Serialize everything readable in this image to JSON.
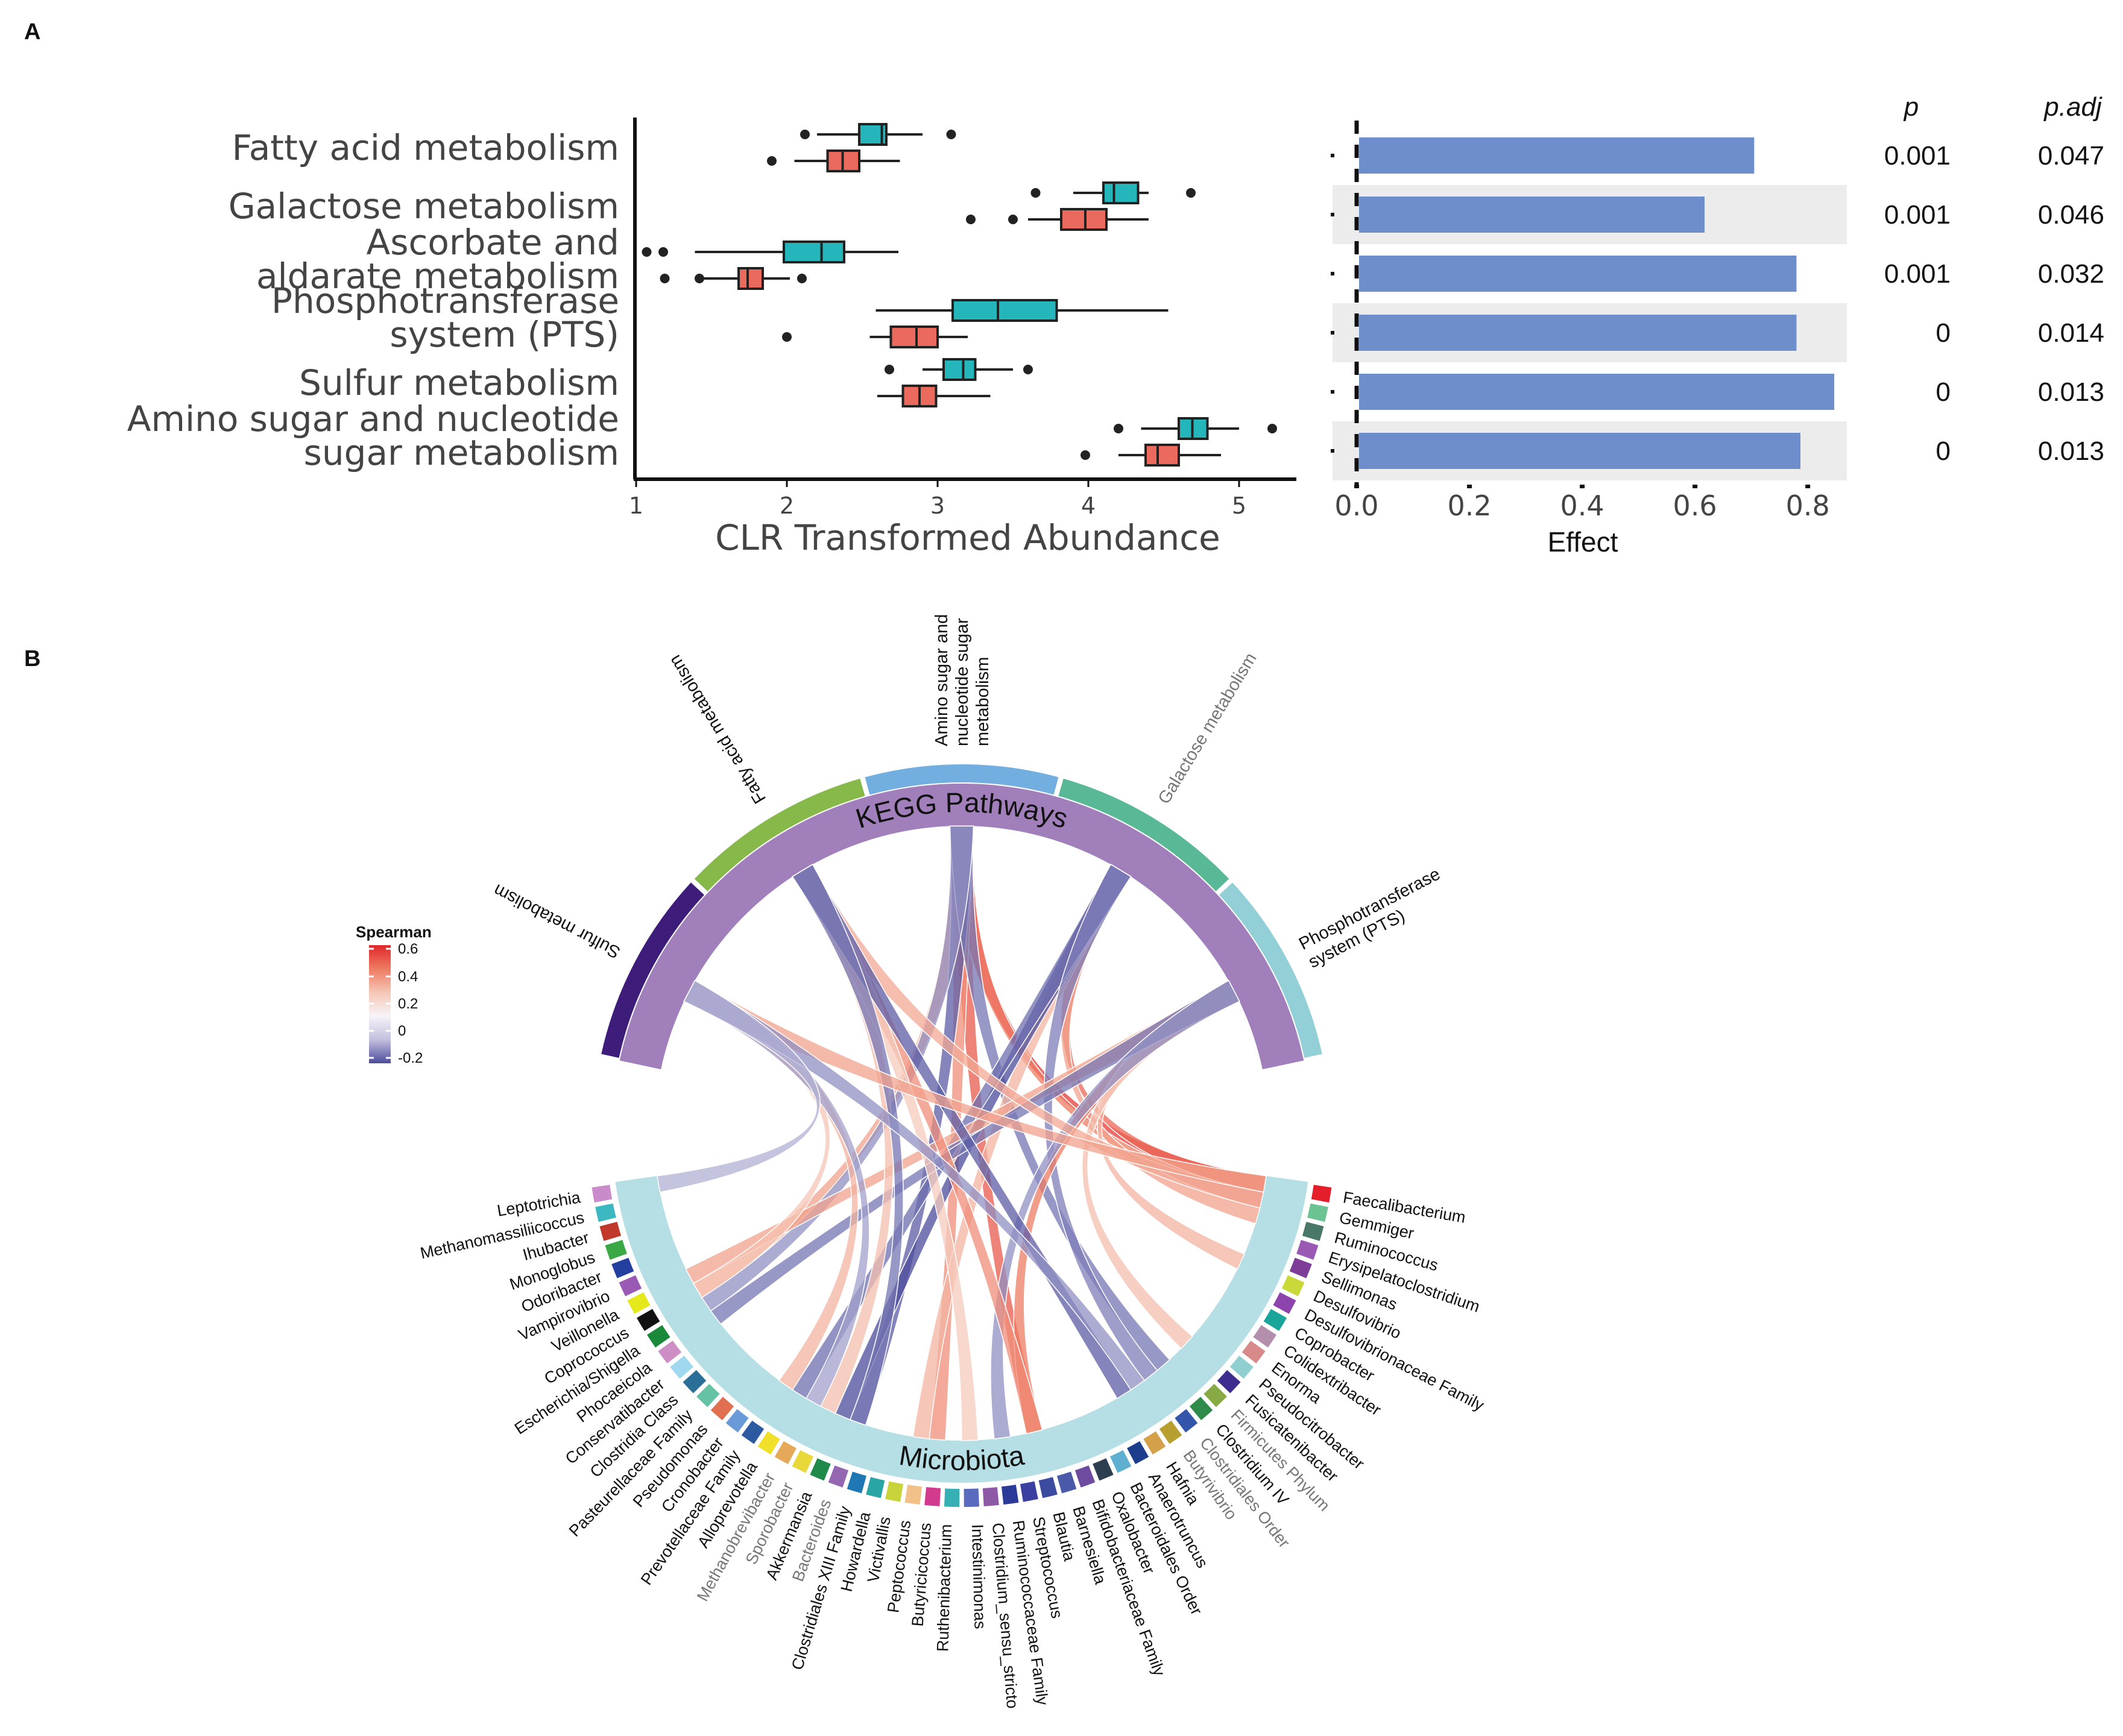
{
  "panel_a_letter": "A",
  "panel_b_letter": "B",
  "chart_data": [
    {
      "type": "boxplot",
      "panel": "A",
      "xlabel": "CLR Transformed Abundance",
      "xlim": [
        1,
        5.4
      ],
      "xticks": [
        1,
        2,
        3,
        4,
        5
      ],
      "colors": {
        "group1": "#25b6bc",
        "group2": "#ea6b5d"
      },
      "categories": [
        {
          "label_lines": [
            "Fatty acid metabolism"
          ],
          "boxes": [
            {
              "group": "group1",
              "whisker_lo": 2.2,
              "q1": 2.48,
              "median": 2.63,
              "q3": 2.66,
              "whisker_hi": 2.9,
              "outliers": [
                2.12,
                3.09
              ]
            },
            {
              "group": "group2",
              "whisker_lo": 2.05,
              "q1": 2.27,
              "median": 2.37,
              "q3": 2.48,
              "whisker_hi": 2.75,
              "outliers": [
                1.9
              ]
            }
          ]
        },
        {
          "label_lines": [
            "Galactose metabolism"
          ],
          "boxes": [
            {
              "group": "group1",
              "whisker_lo": 3.9,
              "q1": 4.1,
              "median": 4.17,
              "q3": 4.33,
              "whisker_hi": 4.4,
              "outliers": [
                3.65,
                4.68
              ]
            },
            {
              "group": "group2",
              "whisker_lo": 3.6,
              "q1": 3.82,
              "median": 3.98,
              "q3": 4.12,
              "whisker_hi": 4.4,
              "outliers": [
                3.22,
                3.5
              ]
            }
          ]
        },
        {
          "label_lines": [
            "Ascorbate and",
            "aldarate metabolism"
          ],
          "boxes": [
            {
              "group": "group1",
              "whisker_lo": 1.39,
              "q1": 1.98,
              "median": 2.23,
              "q3": 2.38,
              "whisker_hi": 2.74,
              "outliers": [
                1.07,
                1.18
              ]
            },
            {
              "group": "group2",
              "whisker_lo": 1.45,
              "q1": 1.68,
              "median": 1.74,
              "q3": 1.84,
              "whisker_hi": 2.02,
              "outliers": [
                1.19,
                1.42,
                2.1
              ]
            }
          ]
        },
        {
          "label_lines": [
            "Phosphotransferase",
            "system (PTS)"
          ],
          "boxes": [
            {
              "group": "group1",
              "whisker_lo": 2.59,
              "q1": 3.1,
              "median": 3.4,
              "q3": 3.79,
              "whisker_hi": 4.53,
              "outliers": []
            },
            {
              "group": "group2",
              "whisker_lo": 2.55,
              "q1": 2.69,
              "median": 2.86,
              "q3": 3.0,
              "whisker_hi": 3.2,
              "outliers": [
                2.0
              ]
            }
          ]
        },
        {
          "label_lines": [
            "Sulfur metabolism"
          ],
          "boxes": [
            {
              "group": "group1",
              "whisker_lo": 2.9,
              "q1": 3.04,
              "median": 3.17,
              "q3": 3.25,
              "whisker_hi": 3.5,
              "outliers": [
                2.68,
                3.6
              ]
            },
            {
              "group": "group2",
              "whisker_lo": 2.6,
              "q1": 2.77,
              "median": 2.88,
              "q3": 2.99,
              "whisker_hi": 3.35,
              "outliers": []
            }
          ]
        },
        {
          "label_lines": [
            "Amino sugar and nucleotide",
            "sugar metabolism"
          ],
          "boxes": [
            {
              "group": "group1",
              "whisker_lo": 4.35,
              "q1": 4.6,
              "median": 4.69,
              "q3": 4.79,
              "whisker_hi": 5.0,
              "outliers": [
                4.2,
                5.22
              ]
            },
            {
              "group": "group2",
              "whisker_lo": 4.2,
              "q1": 4.38,
              "median": 4.46,
              "q3": 4.6,
              "whisker_hi": 4.88,
              "outliers": [
                3.98
              ]
            }
          ]
        }
      ]
    },
    {
      "type": "bar",
      "orientation": "horizontal",
      "panel": "A",
      "xlabel": "Effect",
      "xlim": [
        0,
        0.88
      ],
      "xticks": [
        0.0,
        0.2,
        0.4,
        0.6,
        0.8
      ],
      "xtick_labels": [
        "0.0",
        "0.2",
        "0.4",
        "0.6",
        "0.8"
      ],
      "bar_color": "#6d8ecb",
      "stripe_color": "#ececec",
      "categories": [
        "Fatty acid metabolism",
        "Galactose metabolism",
        "Ascorbate and aldarate metabolism",
        "Phosphotransferase system (PTS)",
        "Sulfur metabolism",
        "Amino sugar and nucleotide sugar metabolism"
      ],
      "values": [
        0.705,
        0.617,
        0.78,
        0.78,
        0.847,
        0.787
      ],
      "table_headers": {
        "p": "p",
        "padj": "p.adj"
      },
      "p": [
        "0.001",
        "0.001",
        "0.001",
        "0",
        "0",
        "0"
      ],
      "padj": [
        "0.047",
        "0.046",
        "0.032",
        "0.014",
        "0.013",
        "0.013"
      ]
    },
    {
      "type": "chord",
      "panel": "B",
      "top_group_label": "KEGG Pathways",
      "bottom_group_label": "Microbiota",
      "legend": {
        "title": "Spearman",
        "labels": [
          "0.6",
          "0.4",
          "0.2",
          "0",
          "-0.2"
        ],
        "values": [
          0.6,
          0.4,
          0.2,
          0,
          -0.2
        ],
        "colors": [
          "#e0272a",
          "#ee7b63",
          "#f5c6b5",
          "#f7f4f9",
          "#c2bfdf",
          "#4b4b9c"
        ]
      },
      "pathways": [
        {
          "label_lines": [
            "Sulfur metabolism"
          ],
          "color": "#3e1c7a",
          "grey": false
        },
        {
          "label_lines": [
            "Fatty acid metabolism"
          ],
          "color": "#86b84a",
          "grey": false
        },
        {
          "label_lines": [
            "Amino sugar and",
            "nucleotide sugar",
            "metabolism"
          ],
          "color": "#73aee0",
          "grey": false
        },
        {
          "label_lines": [
            "Galactose metabolism"
          ],
          "color": "#59b996",
          "grey": true
        },
        {
          "label_lines": [
            "Phosphotransferase",
            "system (PTS)"
          ],
          "color": "#93cfd6",
          "grey": false
        }
      ],
      "taxa": [
        {
          "name": "Faecalibacterium",
          "color": "#e51f2a",
          "grey": false
        },
        {
          "name": "Gemmiger",
          "color": "#6bc393",
          "grey": false
        },
        {
          "name": "Ruminococcus",
          "color": "#4a7868",
          "grey": false
        },
        {
          "name": "Erysipelatoclostridium",
          "color": "#9b59b6",
          "grey": false
        },
        {
          "name": "Sellimonas",
          "color": "#7d3c98",
          "grey": false
        },
        {
          "name": "Desulfovibrio",
          "color": "#c9d93a",
          "grey": false
        },
        {
          "name": "Desulfovibrionaceae Family",
          "color": "#8e44ad",
          "grey": false
        },
        {
          "name": "Coprobacter",
          "color": "#1aa59a",
          "grey": false
        },
        {
          "name": "Colidextribacter",
          "color": "#b48ead",
          "grey": false
        },
        {
          "name": "Enorma",
          "color": "#d88a8a",
          "grey": false
        },
        {
          "name": "Pseudocitrobacter",
          "color": "#8fcfcf",
          "grey": false
        },
        {
          "name": "Fusicatenibacter",
          "color": "#3f2c8f",
          "grey": false
        },
        {
          "name": "Firmicutes Phylum",
          "color": "#88aa44",
          "grey": true
        },
        {
          "name": "Clostridium IV",
          "color": "#2e8b4a",
          "grey": false
        },
        {
          "name": "Clostridiales Order",
          "color": "#3355aa",
          "grey": true
        },
        {
          "name": "Butyrivibrio",
          "color": "#b8a030",
          "grey": true
        },
        {
          "name": "Hafnia",
          "color": "#d4a04a",
          "grey": false
        },
        {
          "name": "Anaerotruncus",
          "color": "#1c3d8c",
          "grey": false
        },
        {
          "name": "Bacteroidales Order",
          "color": "#5fb0d0",
          "grey": false
        },
        {
          "name": "Oxalobacter",
          "color": "#2c3e50",
          "grey": false
        },
        {
          "name": "Bifidobacteriaceae Family",
          "color": "#6e4b9e",
          "grey": false
        },
        {
          "name": "Barnesiella",
          "color": "#4a5aa8",
          "grey": false
        },
        {
          "name": "Blautia",
          "color": "#3a4ba0",
          "grey": false
        },
        {
          "name": "Streptococcus",
          "color": "#3b3fa0",
          "grey": false
        },
        {
          "name": "Ruminococcaceae Family",
          "color": "#2c3a98",
          "grey": false
        },
        {
          "name": "Clostridium_sensu_stricto",
          "color": "#8e5aa8",
          "grey": false
        },
        {
          "name": "Intestinimonas",
          "color": "#5a6abf",
          "grey": false
        },
        {
          "name": "Ruthenibacterium",
          "color": "#36b0b5",
          "grey": false
        },
        {
          "name": "Butyricicoccus",
          "color": "#d23a8e",
          "grey": false
        },
        {
          "name": "Peptococcus",
          "color": "#f2c18a",
          "grey": false
        },
        {
          "name": "Victivallis",
          "color": "#c8d43a",
          "grey": false
        },
        {
          "name": "Howardella",
          "color": "#2aa5a5",
          "grey": false
        },
        {
          "name": "Clostridiales XIII Family",
          "color": "#1f77b4",
          "grey": false
        },
        {
          "name": "Bacteroides",
          "color": "#9468b0",
          "grey": true
        },
        {
          "name": "Akkermansia",
          "color": "#1f8a4a",
          "grey": false
        },
        {
          "name": "Sporobacter",
          "color": "#e8d83a",
          "grey": true
        },
        {
          "name": "Methanobrevibacter",
          "color": "#e6a95a",
          "grey": true
        },
        {
          "name": "Alloprevotella",
          "color": "#f0e02a",
          "grey": false
        },
        {
          "name": "Prevotellaceae Family",
          "color": "#2c5aa0",
          "grey": false
        },
        {
          "name": "Cronobacter",
          "color": "#6a9bd8",
          "grey": false
        },
        {
          "name": "Pseudomonas",
          "color": "#e07050",
          "grey": false
        },
        {
          "name": "Pasteurellaceae Family",
          "color": "#66c2a5",
          "grey": false
        },
        {
          "name": "Clostridia Class",
          "color": "#2a6f97",
          "grey": false
        },
        {
          "name": "Conservatibacter",
          "color": "#a0d8ef",
          "grey": false
        },
        {
          "name": "Phocaeicola",
          "color": "#cc8ec4",
          "grey": false
        },
        {
          "name": "Escherichia/Shigella",
          "color": "#1a8a3a",
          "grey": false
        },
        {
          "name": "Coprococcus",
          "color": "#111111",
          "grey": false
        },
        {
          "name": "Veillonella",
          "color": "#e5e81a",
          "grey": false
        },
        {
          "name": "Vampirovibrio",
          "color": "#9b59b6",
          "grey": false
        },
        {
          "name": "Odoribacter",
          "color": "#2340a0",
          "grey": false
        },
        {
          "name": "Monoglobus",
          "color": "#3aa845",
          "grey": false
        },
        {
          "name": "Ihubacter",
          "color": "#c0392b",
          "grey": false
        },
        {
          "name": "Methanomassiliicoccus",
          "color": "#3cb8c0",
          "grey": false
        },
        {
          "name": "Leptotrichia",
          "color": "#c98bc9",
          "grey": false
        }
      ],
      "links": [
        {
          "pathway": "Amino sugar and nucleotide sugar metabolism",
          "taxon": "Faecalibacterium",
          "rho": 0.55
        },
        {
          "pathway": "Amino sugar and nucleotide sugar metabolism",
          "taxon": "Blautia",
          "rho": 0.48
        },
        {
          "pathway": "Amino sugar and nucleotide sugar metabolism",
          "taxon": "Gemmiger",
          "rho": 0.4
        },
        {
          "pathway": "Amino sugar and nucleotide sugar metabolism",
          "taxon": "Coprococcus",
          "rho": 0.3
        },
        {
          "pathway": "Amino sugar and nucleotide sugar metabolism",
          "taxon": "Butyricicoccus",
          "rho": 0.35
        },
        {
          "pathway": "Amino sugar and nucleotide sugar metabolism",
          "taxon": "Bacteroides",
          "rho": -0.18
        },
        {
          "pathway": "Amino sugar and nucleotide sugar metabolism",
          "taxon": "Clostridium IV",
          "rho": -0.15
        },
        {
          "pathway": "Amino sugar and nucleotide sugar metabolism",
          "taxon": "Escherichia/Shigella",
          "rho": -0.12
        },
        {
          "pathway": "Galactose metabolism",
          "taxon": "Faecalibacterium",
          "rho": 0.45
        },
        {
          "pathway": "Galactose metabolism",
          "taxon": "Ruminococcus",
          "rho": 0.3
        },
        {
          "pathway": "Galactose metabolism",
          "taxon": "Peptococcus",
          "rho": 0.25
        },
        {
          "pathway": "Galactose metabolism",
          "taxon": "Akkermansia",
          "rho": -0.2
        },
        {
          "pathway": "Galactose metabolism",
          "taxon": "Alloprevotella",
          "rho": -0.16
        },
        {
          "pathway": "Galactose metabolism",
          "taxon": "Clostridiales Order",
          "rho": -0.14
        },
        {
          "pathway": "Phosphotransferase system (PTS)",
          "taxon": "Blautia",
          "rho": 0.4
        },
        {
          "pathway": "Phosphotransferase system (PTS)",
          "taxon": "Veillonella",
          "rho": 0.3
        },
        {
          "pathway": "Phosphotransferase system (PTS)",
          "taxon": "Desulfovibrio",
          "rho": 0.25
        },
        {
          "pathway": "Phosphotransferase system (PTS)",
          "taxon": "Fusicatenibacter",
          "rho": 0.22
        },
        {
          "pathway": "Phosphotransferase system (PTS)",
          "taxon": "Phocaeicola",
          "rho": -0.15
        },
        {
          "pathway": "Phosphotransferase system (PTS)",
          "taxon": "Ruminococcaceae Family",
          "rho": -0.12
        },
        {
          "pathway": "Fatty acid metabolism",
          "taxon": "Blautia",
          "rho": 0.35
        },
        {
          "pathway": "Fatty acid metabolism",
          "taxon": "Gemmiger",
          "rho": 0.28
        },
        {
          "pathway": "Fatty acid metabolism",
          "taxon": "Sporobacter",
          "rho": 0.22
        },
        {
          "pathway": "Fatty acid metabolism",
          "taxon": "Intestinimonas",
          "rho": 0.18
        },
        {
          "pathway": "Fatty acid metabolism",
          "taxon": "Hafnia",
          "rho": -0.18
        },
        {
          "pathway": "Fatty acid metabolism",
          "taxon": "Bacteroides",
          "rho": -0.15
        },
        {
          "pathway": "Sulfur metabolism",
          "taxon": "Faecalibacterium",
          "rho": 0.3
        },
        {
          "pathway": "Sulfur metabolism",
          "taxon": "Prevotellaceae Family",
          "rho": 0.25
        },
        {
          "pathway": "Sulfur metabolism",
          "taxon": "Coprococcus",
          "rho": 0.2
        },
        {
          "pathway": "Sulfur metabolism",
          "taxon": "Methanobrevibacter",
          "rho": -0.1
        },
        {
          "pathway": "Sulfur metabolism",
          "taxon": "Butyrivibrio",
          "rho": -0.12
        },
        {
          "pathway": "Sulfur metabolism",
          "taxon": "Leptotrichia",
          "rho": -0.08
        }
      ]
    }
  ]
}
